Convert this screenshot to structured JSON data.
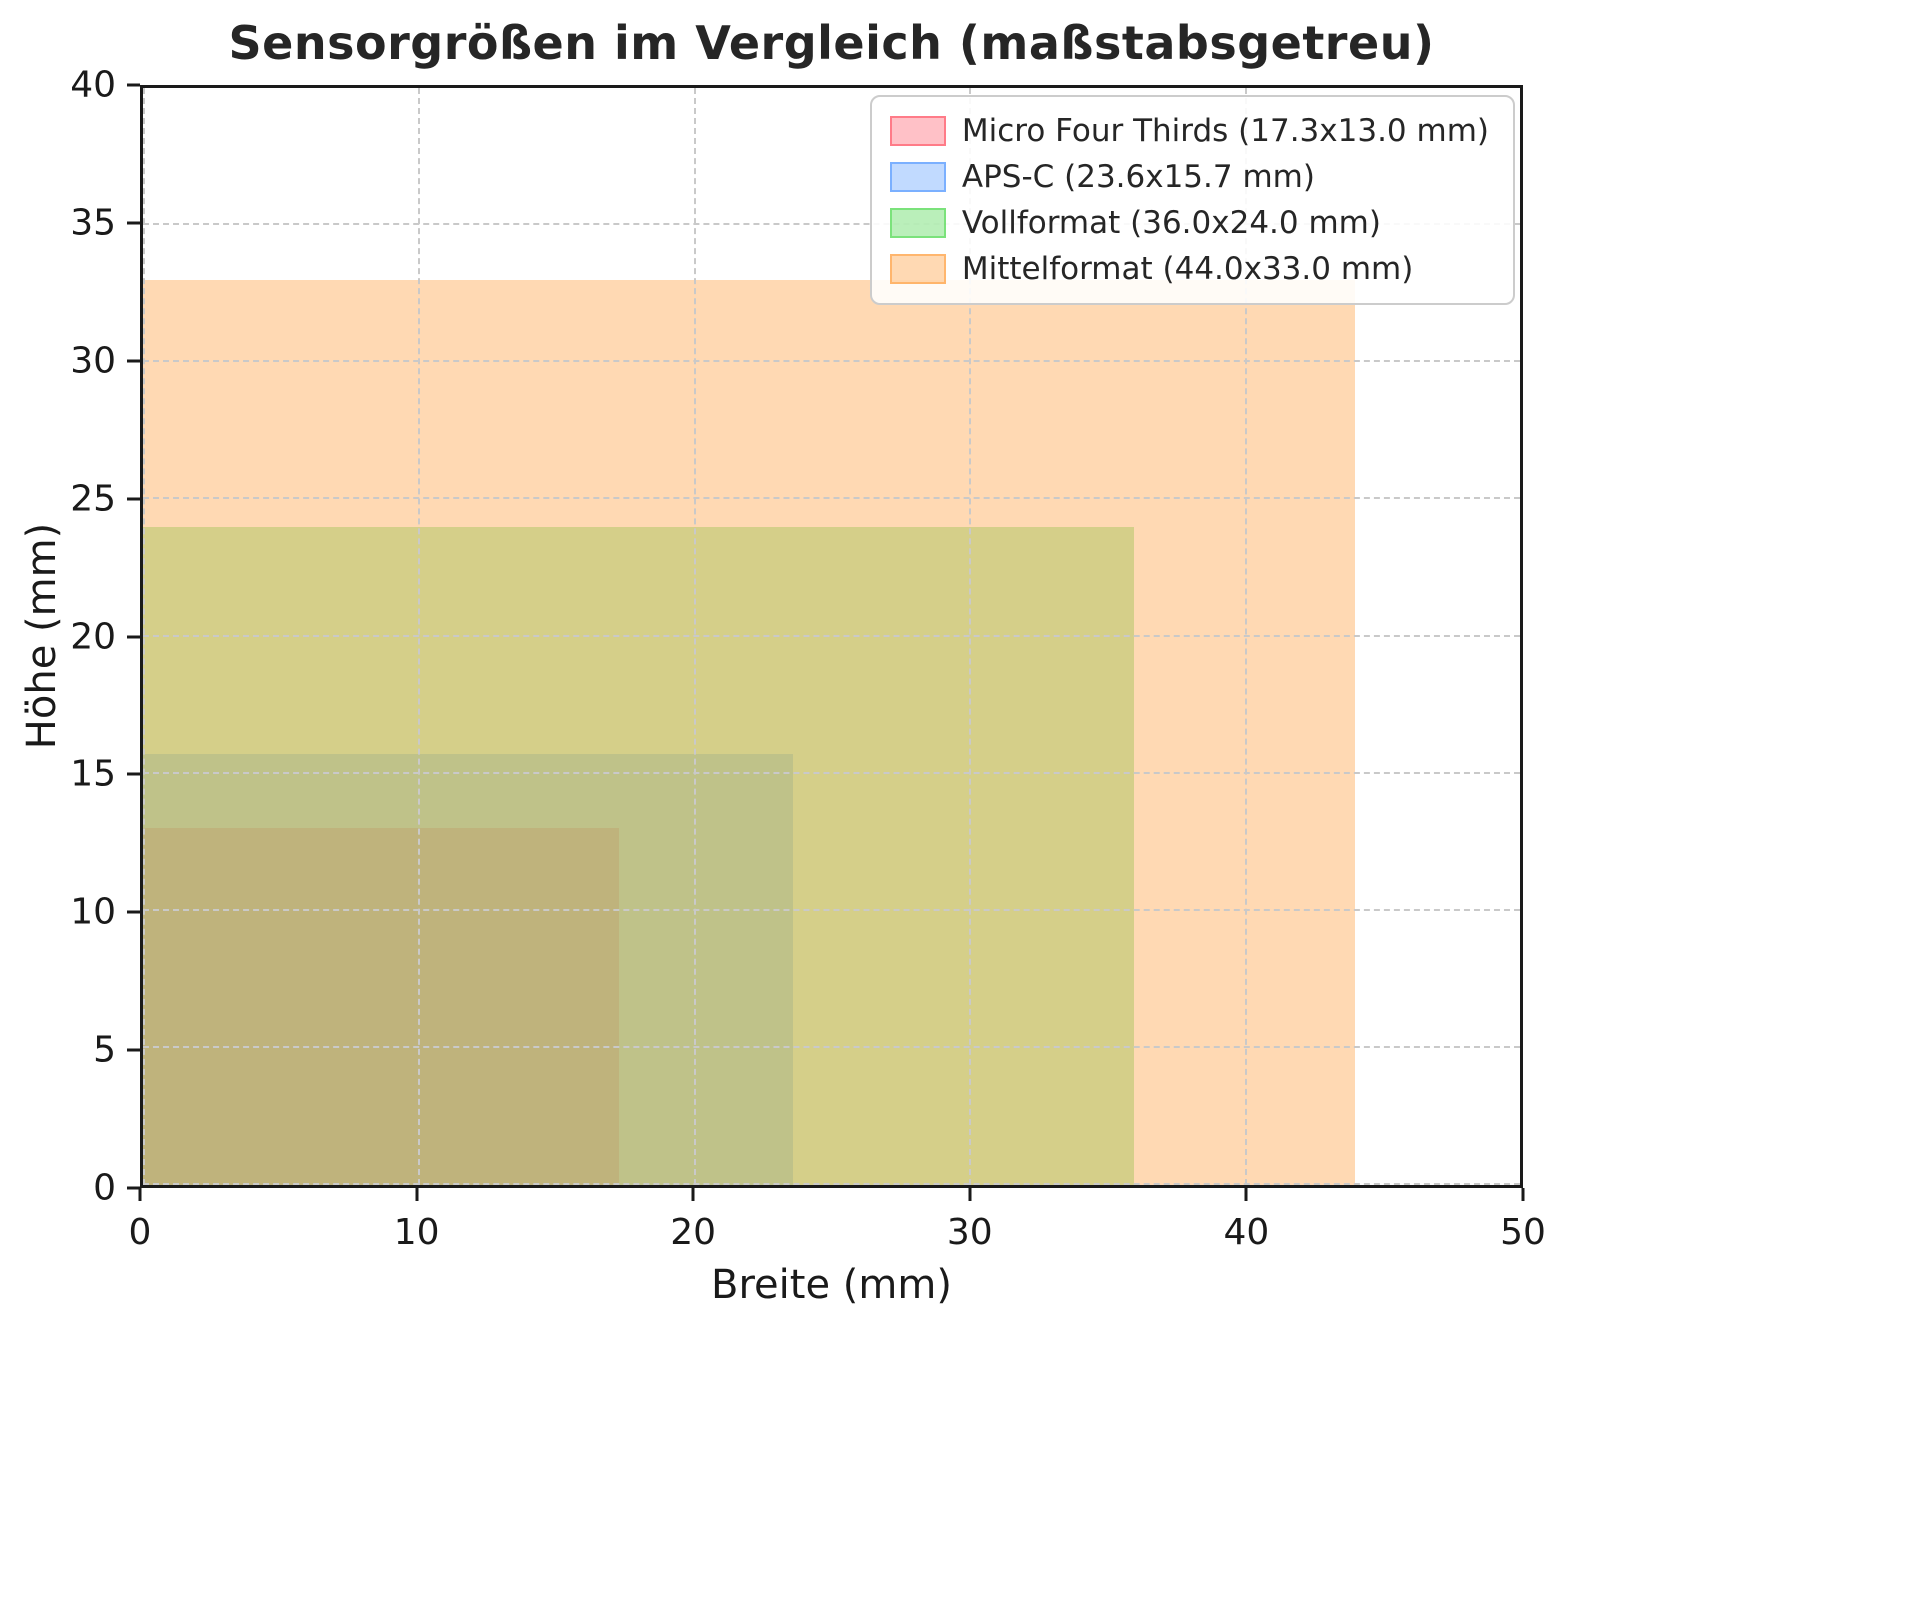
{
  "chart_data": {
    "type": "area",
    "title": "Sensorgrößen im Vergleich (maßstabsgetreu)",
    "xlabel": "Breite (mm)",
    "ylabel": "Höhe (mm)",
    "xlim": [
      0,
      50
    ],
    "ylim": [
      0,
      40
    ],
    "x_ticks": [
      0,
      10,
      20,
      30,
      40,
      50
    ],
    "y_ticks": [
      0,
      5,
      10,
      15,
      20,
      25,
      30,
      35,
      40
    ],
    "grid": true,
    "grid_style": "dashed",
    "legend_position": "upper right",
    "series": [
      {
        "name": "Micro Four Thirds",
        "label": "Micro Four Thirds (17.3x13.0 mm)",
        "width_mm": 17.3,
        "height_mm": 13.0,
        "origin_x": 0,
        "origin_y": 0,
        "color": "#ff4d5e",
        "fill_alpha": 0.35
      },
      {
        "name": "APS-C",
        "label": "APS-C (23.6x15.7 mm)",
        "width_mm": 23.6,
        "height_mm": 15.7,
        "origin_x": 0,
        "origin_y": 0,
        "color": "#4d94ff",
        "fill_alpha": 0.35
      },
      {
        "name": "Vollformat",
        "label": "Vollformat (36.0x24.0 mm)",
        "width_mm": 36.0,
        "height_mm": 24.0,
        "origin_x": 0,
        "origin_y": 0,
        "color": "#52d852",
        "fill_alpha": 0.4
      },
      {
        "name": "Mittelformat",
        "label": "Mittelformat (44.0x33.0 mm)",
        "width_mm": 44.0,
        "height_mm": 33.0,
        "origin_x": 0,
        "origin_y": 0,
        "color": "#ff9f40",
        "fill_alpha": 0.4
      }
    ]
  }
}
